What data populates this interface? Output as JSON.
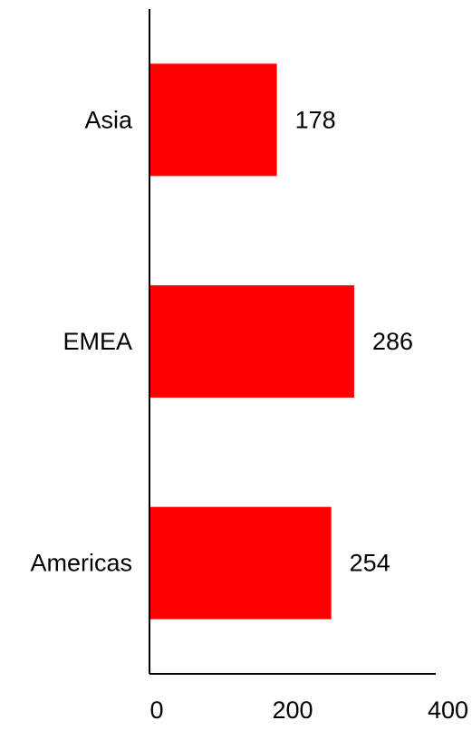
{
  "chart_data": {
    "type": "bar",
    "orientation": "horizontal",
    "title": "",
    "xlabel": "",
    "ylabel": "",
    "categories": [
      "Asia",
      "EMEA",
      "Americas"
    ],
    "values": [
      178,
      286,
      254
    ],
    "xlim": [
      0,
      400
    ],
    "xticks": [
      0,
      200,
      400
    ],
    "xtick_labels": [
      "0",
      "200",
      "400"
    ],
    "data_labels": [
      "178",
      "286",
      "254"
    ],
    "grid": false,
    "legend": "none",
    "bar_color": "#ff0000",
    "axis_color": "#000000",
    "text_color": "#000000"
  }
}
